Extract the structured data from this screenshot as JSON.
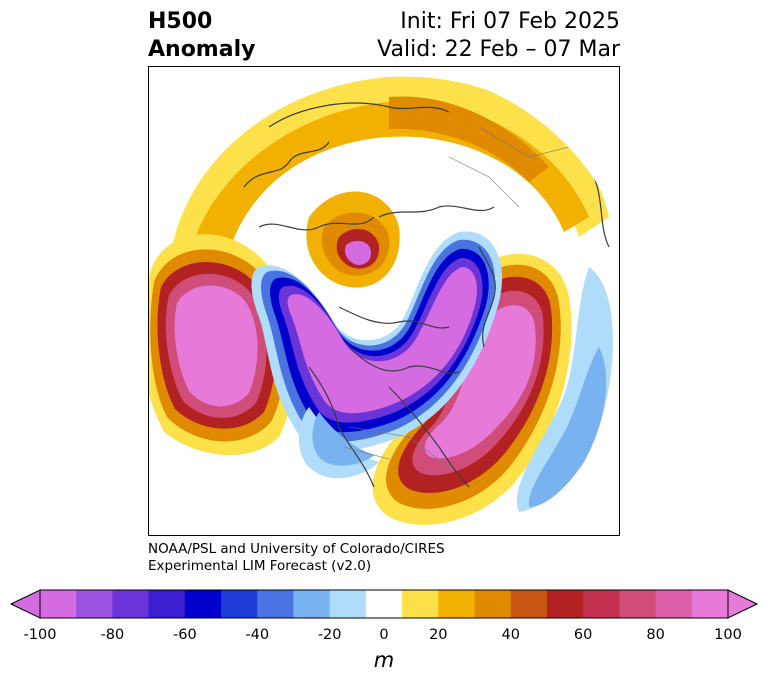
{
  "title": {
    "left_line1": "H500",
    "left_line2": "Anomaly",
    "right_line1": "Init: Fri 07 Feb 2025",
    "right_line2": "Valid: 22 Feb – 07 Mar"
  },
  "credit": {
    "line1": "NOAA/PSL and University of Colorado/CIRES",
    "line2": "Experimental LIM Forecast (v2.0)"
  },
  "colorbar": {
    "unit": "m",
    "ticks": [
      "-100",
      "-80",
      "-60",
      "-40",
      "-20",
      "0",
      "20",
      "40",
      "60",
      "80",
      "100"
    ],
    "boundaries": [
      -100,
      -90,
      -80,
      -70,
      -60,
      -50,
      -40,
      -30,
      -20,
      -10,
      10,
      20,
      30,
      40,
      50,
      60,
      70,
      80,
      90,
      100
    ],
    "colors": [
      "#d46be0",
      "#9a52df",
      "#6a34d9",
      "#3a1ecf",
      "#0000cd",
      "#1e3cd8",
      "#4a73e2",
      "#78b2f0",
      "#aedcfa",
      "#ffffff",
      "#fde14a",
      "#f2b000",
      "#e08a00",
      "#c85615",
      "#b22222",
      "#c2314e",
      "#cf4d78",
      "#dc5fa8",
      "#e77ad8"
    ],
    "under_color": "#d46be0",
    "over_color": "#e77ad8"
  },
  "map": {
    "projection": "north-polar-stereographic",
    "field": "500 hPa geopotential height anomaly"
  }
}
